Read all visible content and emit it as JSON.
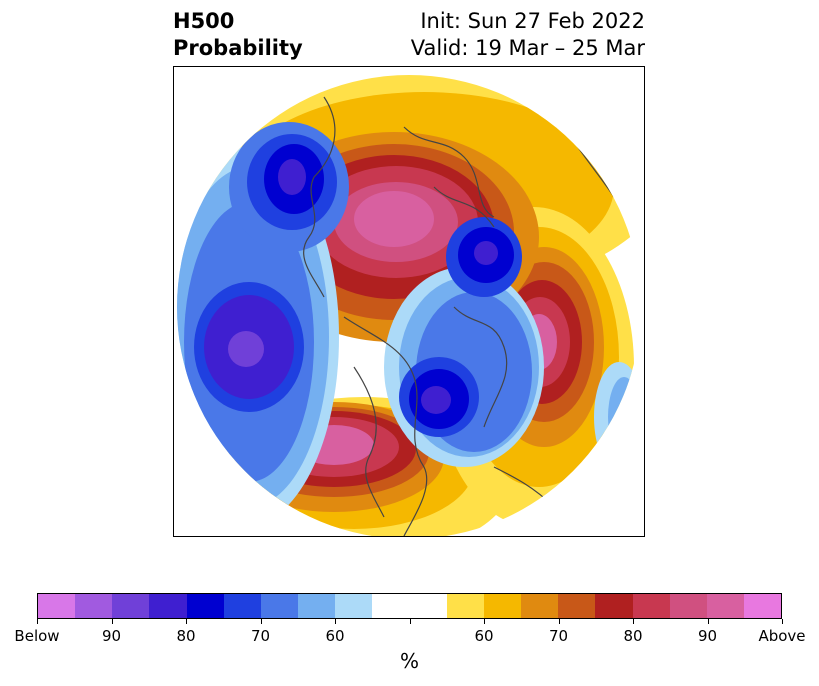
{
  "title": {
    "main_line1": "H500",
    "main_line2": "Probability",
    "init": "Init: Sun 27 Feb 2022",
    "valid": "Valid: 19 Mar – 25 Mar"
  },
  "colorbar": {
    "unit_label": "%",
    "colors": [
      "#d877e8",
      "#a15ae0",
      "#7040d8",
      "#3f1fd0",
      "#0000d0",
      "#1f40e0",
      "#4a78e8",
      "#74aff0",
      "#acdaf8",
      "#ffffff",
      "#ffffff",
      "#ffe048",
      "#f5b800",
      "#e08a10",
      "#c85818",
      "#b02020",
      "#c83850",
      "#d05080",
      "#d860a0",
      "#e878e0"
    ],
    "tick_labels": [
      "Below",
      "90",
      "80",
      "70",
      "60",
      "",
      "60",
      "70",
      "80",
      "90",
      "Above"
    ]
  }
}
